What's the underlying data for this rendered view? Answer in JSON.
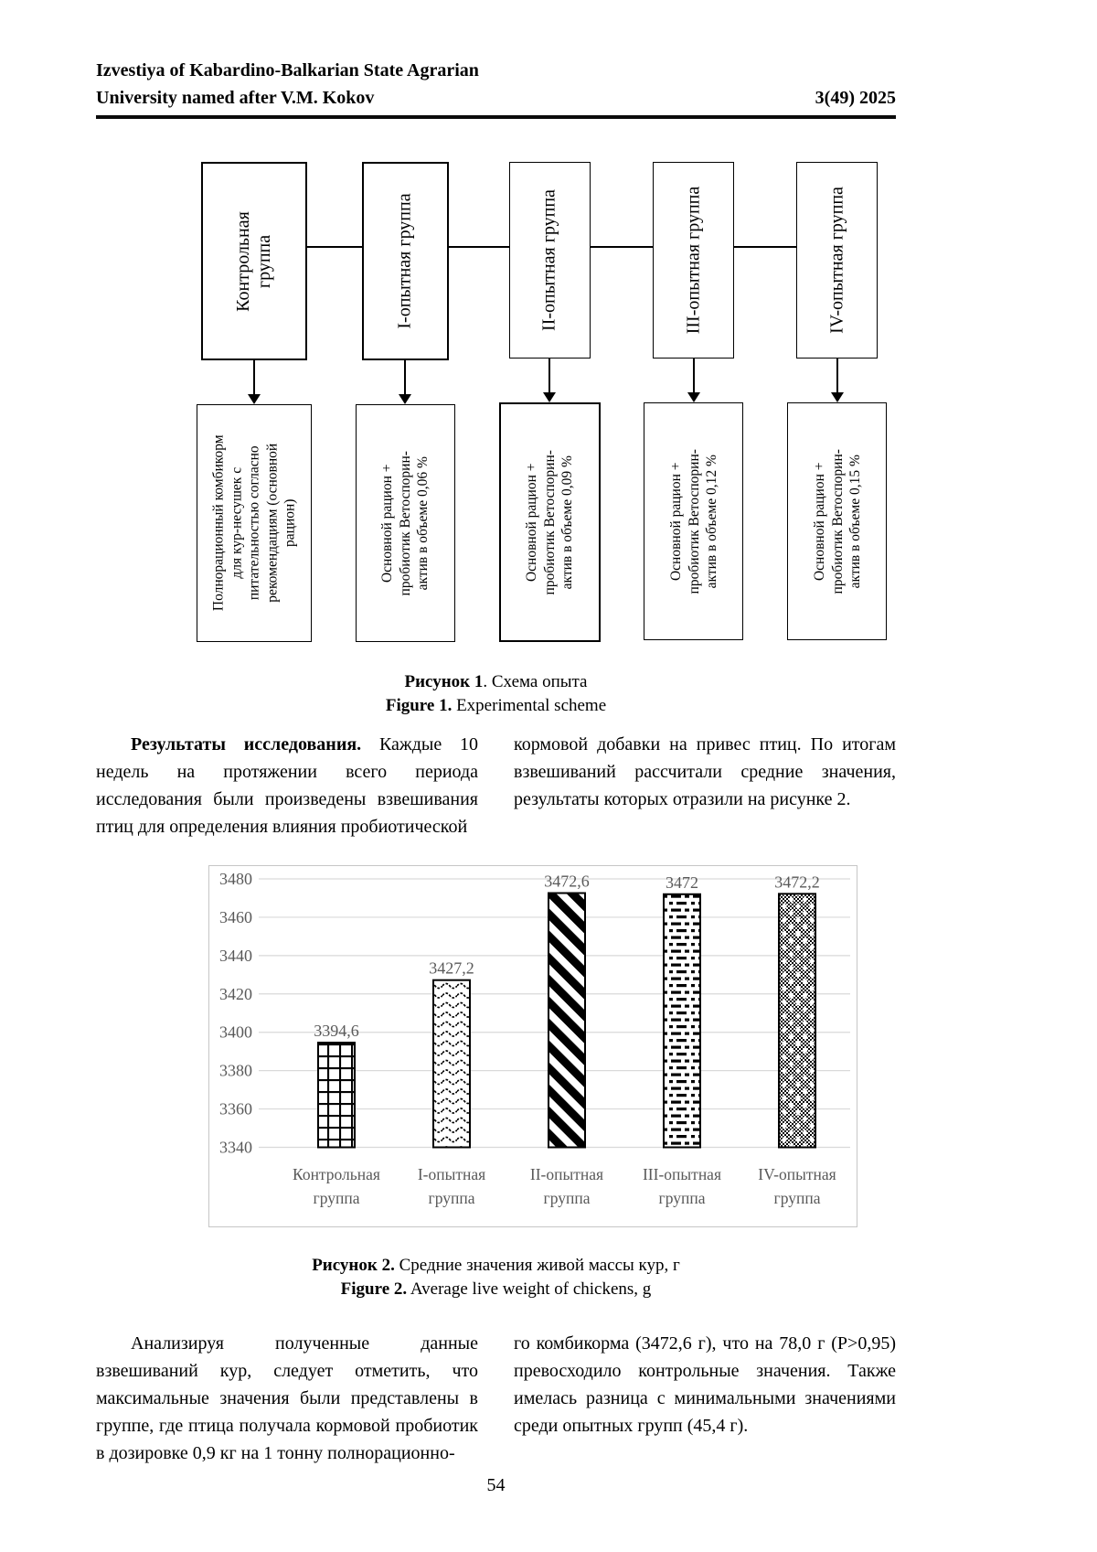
{
  "header": {
    "journal_line1": "Izvestiya of Kabardino-Balkarian State Agrarian",
    "journal_line2": "University named after V.M. Kokov",
    "issue": "3(49) 2025"
  },
  "figure1": {
    "groups": [
      {
        "label": "Контрольная группа",
        "diet": "Полнорационный комбикорм для кур-несушек с питательностью согласно рекомендациям (основной рацион)"
      },
      {
        "label": "I-опытная группа",
        "diet": "Основной рацион + пробиотик Ветоспорин-актив в объеме 0,06 %"
      },
      {
        "label": "II-опытная группа",
        "diet": "Основной рацион + пробиотик Ветоспорин-актив в объеме 0,09 %"
      },
      {
        "label": "III-опытная группа",
        "diet": "Основной рацион + пробиотик Ветоспорин-актив в объеме 0,12 %"
      },
      {
        "label": "IV-опытная группа",
        "diet": "Основной рацион + пробиотик Ветоспорин-актив в объеме 0,15 %"
      }
    ],
    "caption": {
      "ru_bold": "Рисунок 1",
      "ru_rest": ". Схема опыта",
      "en_bold": "Figure 1.",
      "en_rest": " Experimental scheme"
    }
  },
  "results": {
    "lead": "Результаты исследования.",
    "left": " Каждые 10 недель на протяжении всего периода исследования были произведены взвешивания птиц для определения влияния пробиотической",
    "right": "кормовой добавки на привес птиц. По итогам взвешиваний рассчитали средние значения, результаты которых отразили на рисунке 2."
  },
  "chart_data": {
    "type": "bar",
    "title": "Средние значения живой массы кур, г",
    "categories": [
      "Контрольная группа",
      "I-опытная группа",
      "II-опытная группа",
      "III-опытная группа",
      "IV-опытная группа"
    ],
    "values": [
      3394.6,
      3427.2,
      3472.6,
      3472,
      3472.2
    ],
    "value_labels": [
      "3394,6",
      "3427,2",
      "3472,6",
      "3472",
      "3472,2"
    ],
    "xlabel": "",
    "ylabel": "",
    "ylim": [
      3340,
      3480
    ],
    "ytick_step": 20,
    "yticks": [
      "3480",
      "3460",
      "3440",
      "3420",
      "3400",
      "3380",
      "3360",
      "3340"
    ],
    "grid": true,
    "legend": "none",
    "bar_patterns": [
      "grid",
      "wave",
      "diagonal-stripe",
      "dash",
      "checker-dot"
    ],
    "label_color": "#595959",
    "gridline_color": "#d9d9d9",
    "frame_color": "#c6c6c6",
    "bar_outline_color": "#000000"
  },
  "figure2": {
    "caption": {
      "ru_bold": "Рисунок 2.",
      "ru_rest": " Средние значения живой массы кур, г",
      "en_bold": "Figure 2.",
      "en_rest": " Average live weight of chickens, g"
    }
  },
  "analysis": {
    "left": "Анализируя полученные данные взвешиваний кур, следует отметить, что максимальные значения были представлены в группе, где птица получала кормовой пробиотик в дозировке 0,9 кг на 1 тонну полнорационно-",
    "right": "го комбикорма (3472,6 г), что на 78,0 г (Р>0,95) превосходило контрольные значения. Также имелась разница с минимальными значениями среди опытных групп (45,4 г)."
  },
  "page_number": "54"
}
